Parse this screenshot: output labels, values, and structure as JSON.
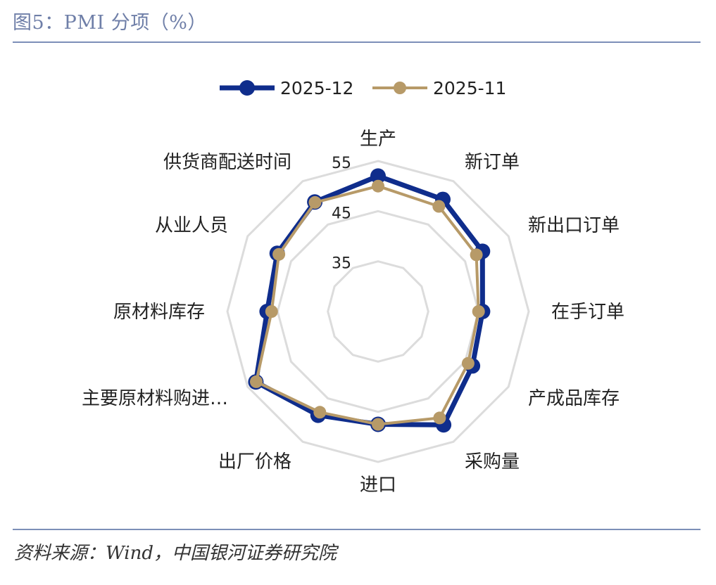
{
  "title": "图5：PMI 分项（%）",
  "source": "资料来源：Wind，中国银河证券研究院",
  "chart_data": {
    "type": "radar",
    "categories": [
      "生产",
      "新订单",
      "新出口订单",
      "在手订单",
      "产成品库存",
      "采购量",
      "进口",
      "出厂价格",
      "主要原材料购进…",
      "原材料库存",
      "从业人员",
      "供货商配送时间"
    ],
    "series": [
      {
        "name": "2025-12",
        "color": "#0f2d8c",
        "values": [
          52.0,
          50.8,
          49.0,
          45.8,
          46.7,
          51.1,
          47.5,
          48.9,
          53.1,
          47.1,
          48.2,
          50.2
        ]
      },
      {
        "name": "2025-11",
        "color": "#b79a68",
        "values": [
          50.0,
          49.2,
          47.6,
          45.0,
          45.7,
          49.5,
          47.5,
          48.2,
          53.0,
          46.2,
          47.8,
          50.1
        ]
      }
    ],
    "rlim": [
      25,
      55
    ],
    "rticks": [
      35,
      45,
      55
    ],
    "grid": true,
    "legend": "top"
  }
}
